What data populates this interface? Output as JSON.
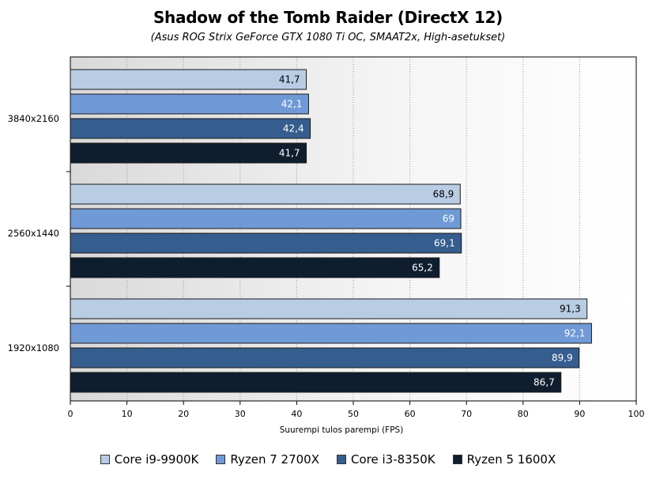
{
  "chart_data": {
    "type": "bar",
    "orientation": "horizontal",
    "title": "Shadow of the Tomb Raider (DirectX 12)",
    "subtitle": "(Asus ROG Strix GeForce GTX 1080 Ti OC, SMAAT2x, High-asetukset)",
    "xlabel": "Suurempi tulos parempi (FPS)",
    "ylabel": "",
    "xlim": [
      0,
      100
    ],
    "xticks": [
      "0",
      "10",
      "20",
      "30",
      "40",
      "50",
      "60",
      "70",
      "80",
      "90",
      "100"
    ],
    "grid": true,
    "legend_position": "bottom",
    "categories": [
      "3840x2160",
      "2560x1440",
      "1920x1080"
    ],
    "series": [
      {
        "name": "Core i9-9900K",
        "color": "#b8cce4",
        "label_color": "#000000",
        "values": [
          41.7,
          68.9,
          91.3
        ],
        "labels": [
          "41,7",
          "68,9",
          "91,3"
        ]
      },
      {
        "name": "Ryzen 7 2700X",
        "color": "#6f9ad6",
        "label_color": "#ffffff",
        "values": [
          42.1,
          69,
          92.1
        ],
        "labels": [
          "42,1",
          "69",
          "92,1"
        ]
      },
      {
        "name": "Core i3-8350K",
        "color": "#355d8e",
        "label_color": "#ffffff",
        "values": [
          42.4,
          69.1,
          89.9
        ],
        "labels": [
          "42,4",
          "69,1",
          "89,9"
        ]
      },
      {
        "name": "Ryzen 5 1600X",
        "color": "#0e1e2e",
        "label_color": "#ffffff",
        "values": [
          41.7,
          65.2,
          86.7
        ],
        "labels": [
          "41,7",
          "65,2",
          "86,7"
        ]
      }
    ]
  }
}
